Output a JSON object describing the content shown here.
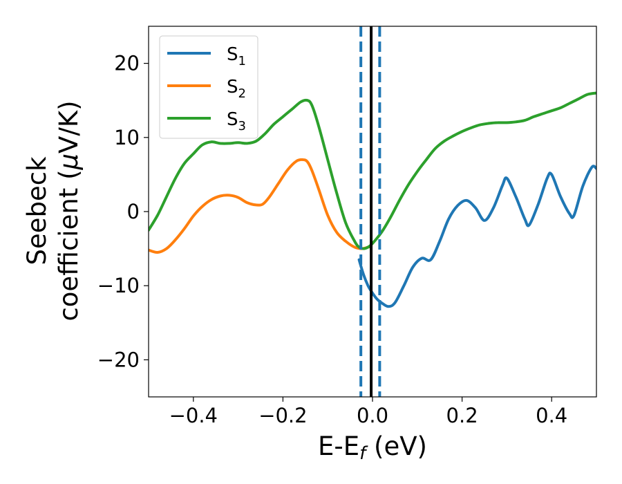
{
  "chart_data": {
    "type": "line",
    "xlabel": {
      "main": "E-E",
      "sub": "f",
      "unit": " (eV)"
    },
    "ylabel": {
      "line1": "Seebeck",
      "line2a": "coefficient  (",
      "mu": "μ",
      "line2b": "V/K)"
    },
    "xlim": [
      -0.5,
      0.5
    ],
    "ylim": [
      -25,
      25
    ],
    "xticks": [
      -0.4,
      -0.2,
      0.0,
      0.2,
      0.4
    ],
    "xtick_labels": [
      "−0.4",
      "−0.2",
      "0.0",
      "0.2",
      "0.4"
    ],
    "yticks": [
      -20,
      -10,
      0,
      10,
      20
    ],
    "ytick_labels": [
      "−20",
      "−10",
      "0",
      "10",
      "20"
    ],
    "grid": false,
    "legend": {
      "placement": "top-left"
    },
    "vlines": [
      {
        "x": -0.026,
        "style": "dashed",
        "color": "#1f77b4"
      },
      {
        "x": 0.016,
        "style": "dashed",
        "color": "#1f77b4"
      },
      {
        "x": -0.003,
        "style": "solid",
        "color": "#000000"
      }
    ],
    "series": [
      {
        "name": "S",
        "sub": "1",
        "color": "#1f77b4",
        "x": [
          -0.03,
          -0.02,
          -0.01,
          0.0,
          0.01,
          0.02,
          0.035,
          0.05,
          0.07,
          0.09,
          0.11,
          0.13,
          0.15,
          0.17,
          0.19,
          0.21,
          0.23,
          0.25,
          0.27,
          0.29,
          0.3,
          0.32,
          0.34,
          0.35,
          0.37,
          0.39,
          0.4,
          0.42,
          0.44,
          0.45,
          0.47,
          0.49,
          0.5
        ],
        "y": [
          -6.5,
          -8.5,
          -10.0,
          -11.0,
          -11.8,
          -12.3,
          -12.8,
          -12.3,
          -10.0,
          -7.5,
          -6.3,
          -6.5,
          -4.0,
          -1.0,
          0.8,
          1.5,
          0.5,
          -1.2,
          0.5,
          3.5,
          4.5,
          2.0,
          -1.0,
          -1.8,
          1.0,
          4.5,
          5.0,
          2.0,
          -0.3,
          -0.5,
          3.5,
          6.0,
          5.8
        ]
      },
      {
        "name": "S",
        "sub": "2",
        "color": "#ff7f0e",
        "x": [
          -0.5,
          -0.48,
          -0.46,
          -0.44,
          -0.42,
          -0.4,
          -0.38,
          -0.36,
          -0.34,
          -0.32,
          -0.3,
          -0.28,
          -0.26,
          -0.245,
          -0.23,
          -0.21,
          -0.19,
          -0.17,
          -0.155,
          -0.145,
          -0.135,
          -0.12,
          -0.1,
          -0.08,
          -0.06,
          -0.04,
          -0.025,
          -0.015,
          -0.005
        ],
        "y": [
          -5.2,
          -5.5,
          -5.0,
          -3.8,
          -2.3,
          -0.6,
          0.7,
          1.6,
          2.1,
          2.2,
          1.9,
          1.2,
          0.9,
          1.0,
          2.0,
          3.8,
          5.6,
          6.8,
          7.0,
          6.7,
          5.5,
          3.0,
          -0.5,
          -2.8,
          -4.0,
          -4.8,
          -5.0,
          -4.9,
          -4.7
        ]
      },
      {
        "name": "S",
        "sub": "3",
        "color": "#2ca02c",
        "x": [
          -0.5,
          -0.48,
          -0.46,
          -0.44,
          -0.42,
          -0.4,
          -0.38,
          -0.36,
          -0.34,
          -0.32,
          -0.3,
          -0.28,
          -0.26,
          -0.24,
          -0.22,
          -0.2,
          -0.18,
          -0.16,
          -0.145,
          -0.135,
          -0.12,
          -0.1,
          -0.08,
          -0.06,
          -0.04,
          -0.03,
          -0.02,
          -0.01,
          0.0,
          0.02,
          0.04,
          0.06,
          0.08,
          0.1,
          0.12,
          0.14,
          0.16,
          0.18,
          0.2,
          0.22,
          0.24,
          0.26,
          0.28,
          0.3,
          0.32,
          0.34,
          0.36,
          0.38,
          0.4,
          0.42,
          0.44,
          0.46,
          0.48,
          0.5
        ],
        "y": [
          -2.5,
          -0.5,
          2.0,
          4.5,
          6.5,
          7.8,
          9.0,
          9.4,
          9.2,
          9.2,
          9.3,
          9.2,
          9.5,
          10.5,
          11.8,
          12.8,
          13.8,
          14.8,
          15.0,
          14.3,
          11.5,
          7.0,
          2.5,
          -1.5,
          -4.0,
          -4.8,
          -5.0,
          -4.8,
          -4.3,
          -2.8,
          -0.8,
          1.5,
          3.6,
          5.4,
          7.0,
          8.5,
          9.5,
          10.2,
          10.8,
          11.3,
          11.7,
          11.9,
          12.0,
          12.0,
          12.1,
          12.3,
          12.8,
          13.2,
          13.6,
          14.0,
          14.6,
          15.2,
          15.8,
          16.0
        ]
      }
    ]
  }
}
